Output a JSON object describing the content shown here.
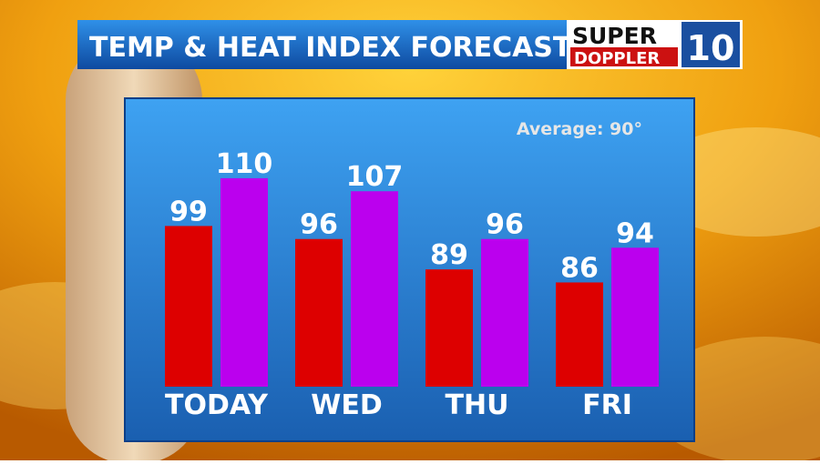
{
  "chart_data": {
    "type": "bar",
    "title": "TEMP & HEAT INDEX FORECAST",
    "annotation": "Average: 90°",
    "categories": [
      "TODAY",
      "WED",
      "THU",
      "FRI"
    ],
    "series": [
      {
        "color": "#dd0000",
        "values": [
          99,
          96,
          89,
          86
        ]
      },
      {
        "color": "#bb00ee",
        "values": [
          110,
          107,
          96,
          94
        ]
      }
    ],
    "ylim": [
      62,
      128
    ]
  },
  "logo": {
    "top": "SUPER",
    "bottom": "DOPPLER",
    "number": "10"
  }
}
